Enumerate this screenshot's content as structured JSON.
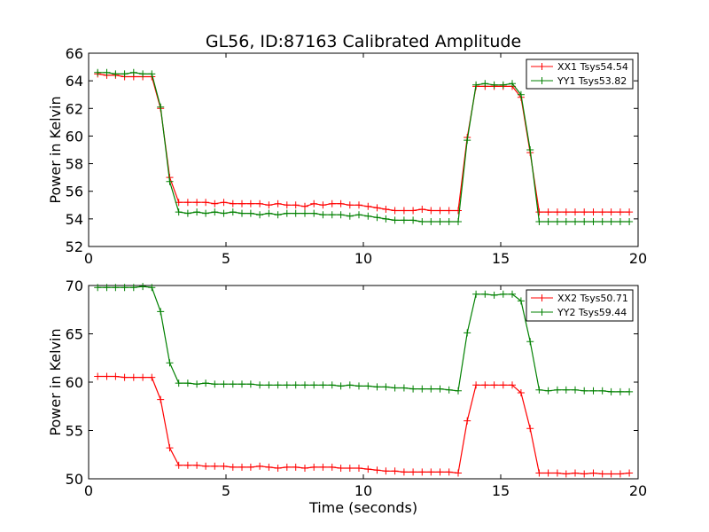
{
  "chart_data": [
    {
      "type": "line",
      "title": "GL56, ID:87163 Calibrated Amplitude",
      "ylabel": "Power in Kelvin",
      "xlabel": "",
      "xlim": [
        0,
        20
      ],
      "ylim": [
        52,
        66
      ],
      "xticks": [
        0,
        5,
        10,
        15,
        20
      ],
      "yticks": [
        52,
        54,
        56,
        58,
        60,
        62,
        64,
        66
      ],
      "grid": false,
      "legend_position": "top-right",
      "x": [
        0.33,
        0.66,
        0.98,
        1.31,
        1.64,
        1.97,
        2.3,
        2.62,
        2.95,
        3.28,
        3.61,
        3.94,
        4.26,
        4.59,
        4.92,
        5.25,
        5.58,
        5.9,
        6.23,
        6.56,
        6.89,
        7.22,
        7.54,
        7.87,
        8.2,
        8.53,
        8.86,
        9.18,
        9.51,
        9.84,
        10.17,
        10.5,
        10.82,
        11.15,
        11.48,
        11.81,
        12.14,
        12.46,
        12.79,
        13.12,
        13.45,
        13.78,
        14.1,
        14.43,
        14.76,
        15.09,
        15.42,
        15.74,
        16.07,
        16.4,
        16.73,
        17.06,
        17.38,
        17.71,
        18.04,
        18.37,
        18.7,
        19.02,
        19.35,
        19.68
      ],
      "series": [
        {
          "name": "XX1 Tsys54.54",
          "color": "#ff0000",
          "values": [
            64.5,
            64.4,
            64.4,
            64.3,
            64.3,
            64.3,
            64.3,
            62.0,
            57.0,
            55.2,
            55.2,
            55.2,
            55.2,
            55.1,
            55.2,
            55.1,
            55.1,
            55.1,
            55.1,
            55.0,
            55.1,
            55.0,
            55.0,
            54.9,
            55.1,
            55.0,
            55.1,
            55.1,
            55.0,
            55.0,
            54.9,
            54.8,
            54.7,
            54.6,
            54.6,
            54.6,
            54.7,
            54.6,
            54.6,
            54.6,
            54.6,
            59.9,
            63.6,
            63.6,
            63.6,
            63.6,
            63.6,
            62.8,
            58.8,
            54.5,
            54.5,
            54.5,
            54.5,
            54.5,
            54.5,
            54.5,
            54.5,
            54.5,
            54.5,
            54.5
          ]
        },
        {
          "name": "YY1 Tsys53.82",
          "color": "#008000",
          "values": [
            64.6,
            64.6,
            64.5,
            64.5,
            64.6,
            64.5,
            64.5,
            62.1,
            56.7,
            54.5,
            54.4,
            54.5,
            54.4,
            54.5,
            54.4,
            54.5,
            54.4,
            54.4,
            54.3,
            54.4,
            54.3,
            54.4,
            54.4,
            54.4,
            54.4,
            54.3,
            54.3,
            54.3,
            54.2,
            54.3,
            54.2,
            54.1,
            54.0,
            53.9,
            53.9,
            53.9,
            53.8,
            53.8,
            53.8,
            53.8,
            53.8,
            59.7,
            63.7,
            63.8,
            63.7,
            63.7,
            63.8,
            63.0,
            59.0,
            53.8,
            53.8,
            53.8,
            53.8,
            53.8,
            53.8,
            53.8,
            53.8,
            53.8,
            53.8,
            53.8
          ]
        }
      ]
    },
    {
      "type": "line",
      "title": "",
      "ylabel": "Power in Kelvin",
      "xlabel": "Time (seconds)",
      "xlim": [
        0,
        20
      ],
      "ylim": [
        50,
        70
      ],
      "xticks": [
        0,
        5,
        10,
        15,
        20
      ],
      "yticks": [
        50,
        55,
        60,
        65,
        70
      ],
      "grid": false,
      "legend_position": "top-right",
      "x": [
        0.33,
        0.66,
        0.98,
        1.31,
        1.64,
        1.97,
        2.3,
        2.62,
        2.95,
        3.28,
        3.61,
        3.94,
        4.26,
        4.59,
        4.92,
        5.25,
        5.58,
        5.9,
        6.23,
        6.56,
        6.89,
        7.22,
        7.54,
        7.87,
        8.2,
        8.53,
        8.86,
        9.18,
        9.51,
        9.84,
        10.17,
        10.5,
        10.82,
        11.15,
        11.48,
        11.81,
        12.14,
        12.46,
        12.79,
        13.12,
        13.45,
        13.78,
        14.1,
        14.43,
        14.76,
        15.09,
        15.42,
        15.74,
        16.07,
        16.4,
        16.73,
        17.06,
        17.38,
        17.71,
        18.04,
        18.37,
        18.7,
        19.02,
        19.35,
        19.68
      ],
      "series": [
        {
          "name": "XX2 Tsys50.71",
          "color": "#ff0000",
          "values": [
            60.6,
            60.6,
            60.6,
            60.5,
            60.5,
            60.5,
            60.5,
            58.2,
            53.2,
            51.4,
            51.4,
            51.4,
            51.3,
            51.3,
            51.3,
            51.2,
            51.2,
            51.2,
            51.3,
            51.2,
            51.1,
            51.2,
            51.2,
            51.1,
            51.2,
            51.2,
            51.2,
            51.1,
            51.1,
            51.1,
            51.0,
            50.9,
            50.8,
            50.8,
            50.7,
            50.7,
            50.7,
            50.7,
            50.7,
            50.7,
            50.6,
            56.0,
            59.7,
            59.7,
            59.7,
            59.7,
            59.7,
            58.9,
            55.2,
            50.6,
            50.6,
            50.6,
            50.5,
            50.6,
            50.5,
            50.6,
            50.5,
            50.5,
            50.5,
            50.6
          ]
        },
        {
          "name": "YY2 Tsys59.44",
          "color": "#008000",
          "values": [
            69.8,
            69.8,
            69.8,
            69.8,
            69.8,
            69.9,
            69.8,
            67.3,
            62.0,
            59.9,
            59.9,
            59.8,
            59.9,
            59.8,
            59.8,
            59.8,
            59.8,
            59.8,
            59.7,
            59.7,
            59.7,
            59.7,
            59.7,
            59.7,
            59.7,
            59.7,
            59.7,
            59.6,
            59.7,
            59.6,
            59.6,
            59.5,
            59.5,
            59.4,
            59.4,
            59.3,
            59.3,
            59.3,
            59.3,
            59.2,
            59.1,
            65.1,
            69.1,
            69.1,
            69.0,
            69.1,
            69.1,
            68.4,
            64.2,
            59.2,
            59.1,
            59.2,
            59.2,
            59.2,
            59.1,
            59.1,
            59.1,
            59.0,
            59.0,
            59.0
          ]
        }
      ]
    }
  ]
}
